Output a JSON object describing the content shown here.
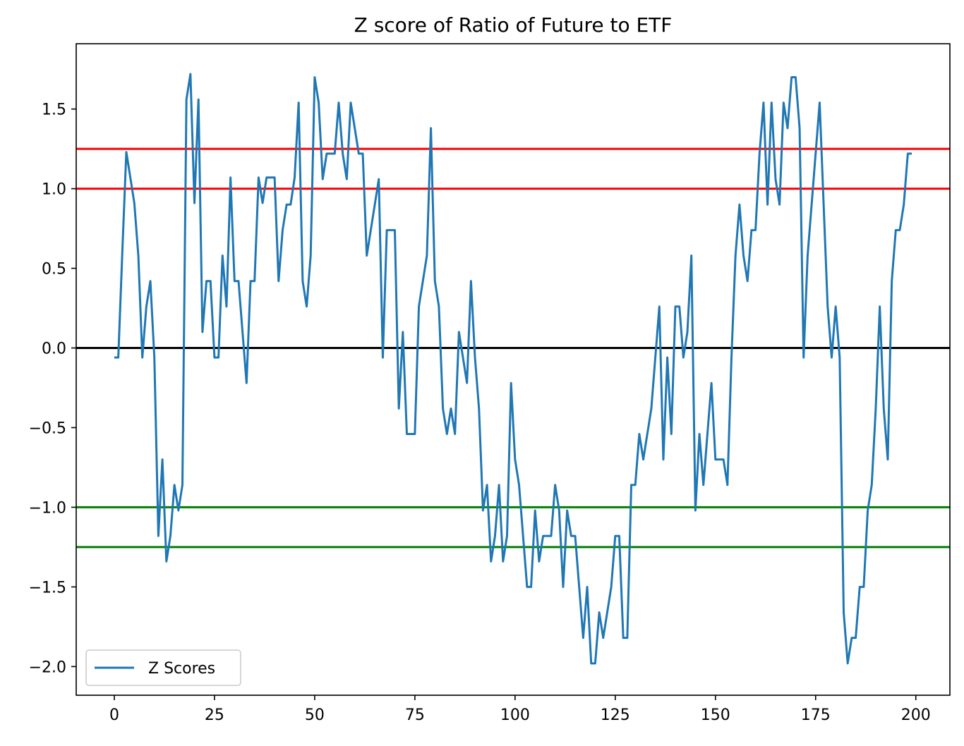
{
  "chart_data": {
    "type": "line",
    "title": "Z score of Ratio of Future to ETF",
    "xlabel": "",
    "ylabel": "",
    "xlim": [
      -9.5,
      208.5
    ],
    "ylim": [
      -2.18,
      1.91
    ],
    "xticks": [
      0,
      25,
      50,
      75,
      100,
      125,
      150,
      175,
      200
    ],
    "yticks": [
      -2.0,
      -1.5,
      -1.0,
      -0.5,
      0.0,
      0.5,
      1.0,
      1.5
    ],
    "ytick_labels": [
      "−2.0",
      "−1.5",
      "−1.0",
      "−0.5",
      "0.0",
      "0.5",
      "1.0",
      "1.5"
    ],
    "xtick_labels": [
      "0",
      "25",
      "50",
      "75",
      "100",
      "125",
      "150",
      "175",
      "200"
    ],
    "grid": false,
    "legend": {
      "placement": "lower-left",
      "entries": [
        "Z Scores"
      ]
    },
    "hlines": [
      {
        "y": 1.25,
        "color": "#ff0000"
      },
      {
        "y": 1.0,
        "color": "#ff0000"
      },
      {
        "y": 0.0,
        "color": "#000000"
      },
      {
        "y": -1.0,
        "color": "#008000"
      },
      {
        "y": -1.25,
        "color": "#008000"
      }
    ],
    "series": [
      {
        "name": "Z Scores",
        "color": "#1f77b4",
        "x": [
          0,
          1,
          2,
          3,
          4,
          5,
          6,
          7,
          8,
          9,
          10,
          11,
          12,
          13,
          14,
          15,
          16,
          17,
          18,
          19,
          20,
          21,
          22,
          23,
          24,
          25,
          26,
          27,
          28,
          29,
          30,
          31,
          32,
          33,
          34,
          35,
          36,
          37,
          38,
          39,
          40,
          41,
          42,
          43,
          44,
          45,
          46,
          47,
          48,
          49,
          50,
          51,
          52,
          53,
          54,
          55,
          56,
          57,
          58,
          59,
          60,
          61,
          62,
          63,
          64,
          65,
          66,
          67,
          68,
          69,
          70,
          71,
          72,
          73,
          74,
          75,
          76,
          77,
          78,
          79,
          80,
          81,
          82,
          83,
          84,
          85,
          86,
          87,
          88,
          89,
          90,
          91,
          92,
          93,
          94,
          95,
          96,
          97,
          98,
          99,
          100,
          101,
          102,
          103,
          104,
          105,
          106,
          107,
          108,
          109,
          110,
          111,
          112,
          113,
          114,
          115,
          116,
          117,
          118,
          119,
          120,
          121,
          122,
          123,
          124,
          125,
          126,
          127,
          128,
          129,
          130,
          131,
          132,
          133,
          134,
          135,
          136,
          137,
          138,
          139,
          140,
          141,
          142,
          143,
          144,
          145,
          146,
          147,
          148,
          149,
          150,
          151,
          152,
          153,
          154,
          155,
          156,
          157,
          158,
          159,
          160,
          161,
          162,
          163,
          164,
          165,
          166,
          167,
          168,
          169,
          170,
          171,
          172,
          173,
          174,
          175,
          176,
          177,
          178,
          179,
          180,
          181,
          182,
          183,
          184,
          185,
          186,
          187,
          188,
          189,
          190,
          191,
          192,
          193,
          194,
          195,
          196,
          197,
          198,
          199
        ],
        "values": [
          -0.06,
          -0.06,
          0.6,
          1.23,
          1.07,
          0.91,
          0.58,
          -0.06,
          0.26,
          0.42,
          -0.06,
          -1.18,
          -0.7,
          -1.34,
          -1.18,
          -0.86,
          -1.02,
          -0.86,
          1.56,
          1.72,
          0.91,
          1.56,
          0.1,
          0.42,
          0.42,
          -0.06,
          -0.06,
          0.58,
          0.26,
          1.07,
          0.42,
          0.42,
          0.1,
          -0.22,
          0.42,
          0.42,
          1.07,
          0.91,
          1.07,
          1.07,
          1.07,
          0.42,
          0.74,
          0.9,
          0.9,
          1.07,
          1.54,
          0.42,
          0.26,
          0.58,
          1.7,
          1.54,
          1.06,
          1.22,
          1.22,
          1.22,
          1.54,
          1.22,
          1.06,
          1.54,
          1.38,
          1.22,
          1.22,
          0.58,
          0.74,
          0.9,
          1.06,
          -0.06,
          0.74,
          0.74,
          0.74,
          -0.38,
          0.1,
          -0.54,
          -0.54,
          -0.54,
          0.26,
          0.42,
          0.58,
          1.38,
          0.42,
          0.26,
          -0.38,
          -0.54,
          -0.38,
          -0.54,
          0.1,
          -0.06,
          -0.22,
          0.42,
          -0.06,
          -0.38,
          -1.02,
          -0.86,
          -1.34,
          -1.18,
          -0.86,
          -1.34,
          -1.18,
          -0.22,
          -0.7,
          -0.86,
          -1.18,
          -1.5,
          -1.5,
          -1.02,
          -1.34,
          -1.18,
          -1.18,
          -1.18,
          -0.86,
          -1.02,
          -1.5,
          -1.02,
          -1.18,
          -1.18,
          -1.5,
          -1.82,
          -1.5,
          -1.98,
          -1.98,
          -1.66,
          -1.82,
          -1.66,
          -1.5,
          -1.18,
          -1.18,
          -1.82,
          -1.82,
          -0.86,
          -0.86,
          -0.54,
          -0.7,
          -0.54,
          -0.38,
          -0.06,
          0.26,
          -0.7,
          -0.06,
          -0.54,
          0.26,
          0.26,
          -0.06,
          0.1,
          0.58,
          -1.02,
          -0.54,
          -0.86,
          -0.54,
          -0.22,
          -0.7,
          -0.7,
          -0.7,
          -0.86,
          -0.06,
          0.58,
          0.9,
          0.58,
          0.42,
          0.74,
          0.74,
          1.22,
          1.54,
          0.9,
          1.54,
          1.06,
          0.9,
          1.54,
          1.38,
          1.7,
          1.7,
          1.38,
          -0.06,
          0.58,
          0.9,
          1.22,
          1.54,
          0.9,
          0.26,
          -0.06,
          0.26,
          -0.06,
          -1.66,
          -1.98,
          -1.82,
          -1.82,
          -1.5,
          -1.5,
          -1.02,
          -0.86,
          -0.38,
          0.26,
          -0.38,
          -0.7,
          0.42,
          0.74,
          0.74,
          0.9,
          1.22,
          1.22
        ]
      }
    ]
  }
}
